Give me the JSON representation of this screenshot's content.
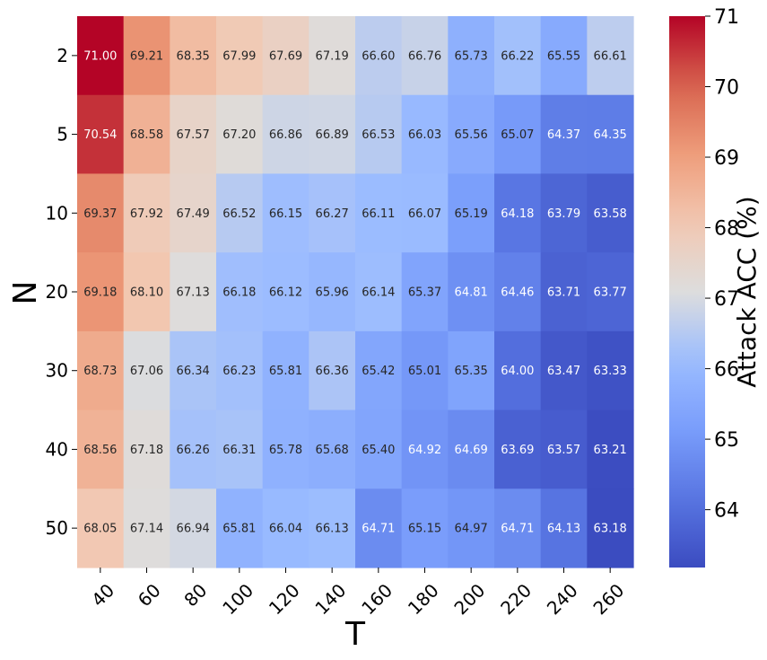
{
  "chart_data": {
    "type": "heatmap",
    "title": "",
    "xlabel": "T",
    "ylabel": "N",
    "x_categories": [
      "40",
      "60",
      "80",
      "100",
      "120",
      "140",
      "160",
      "180",
      "200",
      "220",
      "240",
      "260"
    ],
    "y_categories": [
      "2",
      "5",
      "10",
      "20",
      "30",
      "40",
      "50"
    ],
    "values": [
      [
        71.0,
        69.21,
        68.35,
        67.99,
        67.69,
        67.19,
        66.6,
        66.76,
        65.73,
        66.22,
        65.55,
        66.61
      ],
      [
        70.54,
        68.58,
        67.57,
        67.2,
        66.86,
        66.89,
        66.53,
        66.03,
        65.56,
        65.07,
        64.37,
        64.35
      ],
      [
        69.37,
        67.92,
        67.49,
        66.52,
        66.15,
        66.27,
        66.11,
        66.07,
        65.19,
        64.18,
        63.79,
        63.58
      ],
      [
        69.18,
        68.1,
        67.13,
        66.18,
        66.12,
        65.96,
        66.14,
        65.37,
        64.81,
        64.46,
        63.71,
        63.77
      ],
      [
        68.73,
        67.06,
        66.34,
        66.23,
        65.81,
        66.36,
        65.42,
        65.01,
        65.35,
        64.0,
        63.47,
        63.33
      ],
      [
        68.56,
        67.18,
        66.26,
        66.31,
        65.78,
        65.68,
        65.4,
        64.92,
        64.69,
        63.69,
        63.57,
        63.21
      ],
      [
        68.05,
        67.14,
        66.94,
        65.81,
        66.04,
        66.13,
        64.71,
        65.15,
        64.97,
        64.71,
        64.13,
        63.18
      ]
    ],
    "colormap": "coolwarm",
    "colorbar": {
      "label": "Attack ACC (%)",
      "range": [
        63.18,
        71.0
      ],
      "ticks": [
        64,
        65,
        66,
        67,
        68,
        69,
        70,
        71
      ]
    }
  }
}
